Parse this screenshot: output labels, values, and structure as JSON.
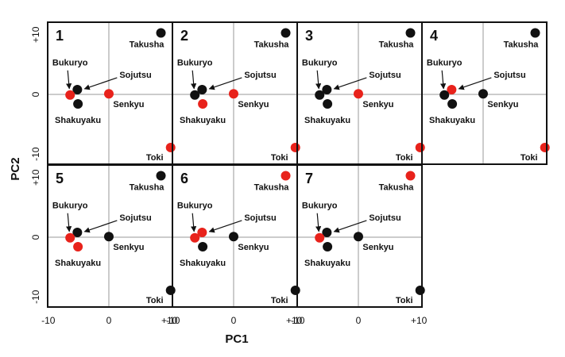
{
  "axes": {
    "xlabel": "PC1",
    "ylabel": "PC2"
  },
  "chart_data": [
    {
      "type": "scatter",
      "panel_label": "1",
      "labels": [
        "Takusha",
        "Sojutsu",
        "Bukuryo",
        "Shakuyaku",
        "Senkyu",
        "Toki"
      ],
      "x": [
        8.6,
        -5.2,
        -6.4,
        -5.1,
        0,
        10.2
      ],
      "values": [
        10.3,
        0.8,
        -0.1,
        -1.6,
        0.1,
        -8.9
      ],
      "colors": [
        "#111111",
        "#111111",
        "#e8221b",
        "#111111",
        "#e8221b",
        "#e8221b"
      ],
      "xlim": [
        -10.1,
        10.5
      ],
      "ylim": [
        -11.7,
        12.1
      ],
      "yticks": [
        {
          "value": 10,
          "label": "+10"
        },
        0,
        -10
      ]
    },
    {
      "type": "scatter",
      "panel_label": "2",
      "labels": [
        "Takusha",
        "Sojutsu",
        "Bukuryo",
        "Shakuyaku",
        "Senkyu",
        "Toki"
      ],
      "x": [
        8.6,
        -5.2,
        -6.4,
        -5.1,
        0,
        10.2
      ],
      "values": [
        10.3,
        0.8,
        -0.1,
        -1.6,
        0.1,
        -8.9
      ],
      "colors": [
        "#111111",
        "#111111",
        "#111111",
        "#e8221b",
        "#e8221b",
        "#e8221b"
      ],
      "xlim": [
        -10.1,
        10.5
      ],
      "ylim": [
        -11.7,
        12.1
      ]
    },
    {
      "type": "scatter",
      "panel_label": "3",
      "labels": [
        "Takusha",
        "Sojutsu",
        "Bukuryo",
        "Shakuyaku",
        "Senkyu",
        "Toki"
      ],
      "x": [
        8.6,
        -5.2,
        -6.4,
        -5.1,
        0,
        10.2
      ],
      "values": [
        10.3,
        0.8,
        -0.1,
        -1.6,
        0.1,
        -8.9
      ],
      "colors": [
        "#111111",
        "#111111",
        "#111111",
        "#111111",
        "#e8221b",
        "#e8221b"
      ],
      "xlim": [
        -10.1,
        10.5
      ],
      "ylim": [
        -11.7,
        12.1
      ]
    },
    {
      "type": "scatter",
      "panel_label": "4",
      "labels": [
        "Takusha",
        "Sojutsu",
        "Bukuryo",
        "Shakuyaku",
        "Senkyu",
        "Toki"
      ],
      "x": [
        8.6,
        -5.2,
        -6.4,
        -5.1,
        0,
        10.2
      ],
      "values": [
        10.3,
        0.8,
        -0.1,
        -1.6,
        0.1,
        -8.9
      ],
      "colors": [
        "#111111",
        "#e8221b",
        "#111111",
        "#111111",
        "#111111",
        "#e8221b"
      ],
      "xlim": [
        -10.1,
        10.5
      ],
      "ylim": [
        -11.7,
        12.1
      ]
    },
    {
      "type": "scatter",
      "panel_label": "5",
      "labels": [
        "Takusha",
        "Sojutsu",
        "Bukuryo",
        "Shakuyaku",
        "Senkyu",
        "Toki"
      ],
      "x": [
        8.6,
        -5.2,
        -6.4,
        -5.1,
        0,
        10.2
      ],
      "values": [
        10.3,
        0.8,
        -0.1,
        -1.6,
        0.1,
        -8.9
      ],
      "colors": [
        "#111111",
        "#111111",
        "#e8221b",
        "#e8221b",
        "#111111",
        "#111111"
      ],
      "xlim": [
        -10.1,
        10.5
      ],
      "ylim": [
        -11.7,
        12.1
      ],
      "xticks": [
        -10,
        0,
        {
          "value": 10,
          "label": "+10"
        }
      ],
      "yticks": [
        {
          "value": 10,
          "label": "+10"
        },
        0,
        -10
      ]
    },
    {
      "type": "scatter",
      "panel_label": "6",
      "labels": [
        "Takusha",
        "Sojutsu",
        "Bukuryo",
        "Shakuyaku",
        "Senkyu",
        "Toki"
      ],
      "x": [
        8.6,
        -5.2,
        -6.4,
        -5.1,
        0,
        10.2
      ],
      "values": [
        10.3,
        0.8,
        -0.1,
        -1.6,
        0.1,
        -8.9
      ],
      "colors": [
        "#e8221b",
        "#e8221b",
        "#e8221b",
        "#111111",
        "#111111",
        "#111111"
      ],
      "xlim": [
        -10.1,
        10.5
      ],
      "ylim": [
        -11.7,
        12.1
      ],
      "xticks": [
        -10,
        0,
        {
          "value": 10,
          "label": "+10"
        }
      ]
    },
    {
      "type": "scatter",
      "panel_label": "7",
      "labels": [
        "Takusha",
        "Sojutsu",
        "Bukuryo",
        "Shakuyaku",
        "Senkyu",
        "Toki"
      ],
      "x": [
        8.6,
        -5.2,
        -6.4,
        -5.1,
        0,
        10.2
      ],
      "values": [
        10.3,
        0.8,
        -0.1,
        -1.6,
        0.1,
        -8.9
      ],
      "colors": [
        "#e8221b",
        "#111111",
        "#e8221b",
        "#111111",
        "#111111",
        "#111111"
      ],
      "xlim": [
        -10.1,
        10.5
      ],
      "ylim": [
        -11.7,
        12.1
      ],
      "xticks": [
        -10,
        0,
        {
          "value": 10,
          "label": "+10"
        }
      ]
    }
  ]
}
